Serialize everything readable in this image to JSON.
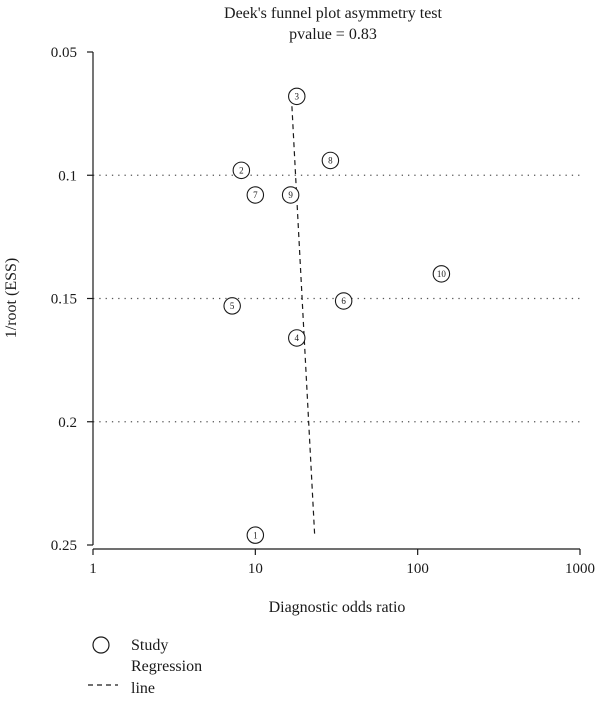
{
  "chart_data": {
    "type": "scatter",
    "title": "Deek's funnel plot asymmetry test",
    "subtitle": "pvalue = 0.83",
    "xlabel": "Diagnostic odds ratio",
    "ylabel": "1/root (ESS)",
    "x_scale": "log",
    "y_axis_inverted": true,
    "xlim": [
      1,
      1000
    ],
    "ylim": [
      0.05,
      0.25
    ],
    "x_ticks": [
      1,
      10,
      100,
      1000
    ],
    "x_tick_labels": [
      "1",
      "10",
      "100",
      "1000"
    ],
    "y_ticks": [
      0.05,
      0.1,
      0.15,
      0.2,
      0.25
    ],
    "y_tick_labels": [
      "0.05",
      "0.1",
      "0.15",
      "0.2",
      "0.25"
    ],
    "gridlines_y": [
      0.1,
      0.15,
      0.2
    ],
    "grid_style": "dotted horizontal",
    "series": [
      {
        "name": "Study",
        "points": [
          {
            "label": "1",
            "x": 10,
            "y": 0.246
          },
          {
            "label": "2",
            "x": 8.2,
            "y": 0.098
          },
          {
            "label": "3",
            "x": 18,
            "y": 0.068
          },
          {
            "label": "4",
            "x": 18,
            "y": 0.166
          },
          {
            "label": "5",
            "x": 7.2,
            "y": 0.153
          },
          {
            "label": "6",
            "x": 35,
            "y": 0.151
          },
          {
            "label": "7",
            "x": 10,
            "y": 0.108
          },
          {
            "label": "8",
            "x": 29,
            "y": 0.094
          },
          {
            "label": "9",
            "x": 16.5,
            "y": 0.108
          },
          {
            "label": "10",
            "x": 140,
            "y": 0.14
          }
        ]
      },
      {
        "name": "Regression line",
        "style": "dashed",
        "points": [
          {
            "x": 16.8,
            "y": 0.072
          },
          {
            "x": 23.2,
            "y": 0.246
          }
        ]
      }
    ],
    "legend": {
      "placement": "bottom-left",
      "items": [
        {
          "label_lines": [
            "Study"
          ],
          "symbol": "circle"
        },
        {
          "label_lines": [
            "Regression",
            "line"
          ],
          "symbol": "dashed-line"
        }
      ]
    },
    "colors": {
      "ink": "#1a1a1a",
      "grid": "#555555",
      "background": "#ffffff"
    }
  }
}
